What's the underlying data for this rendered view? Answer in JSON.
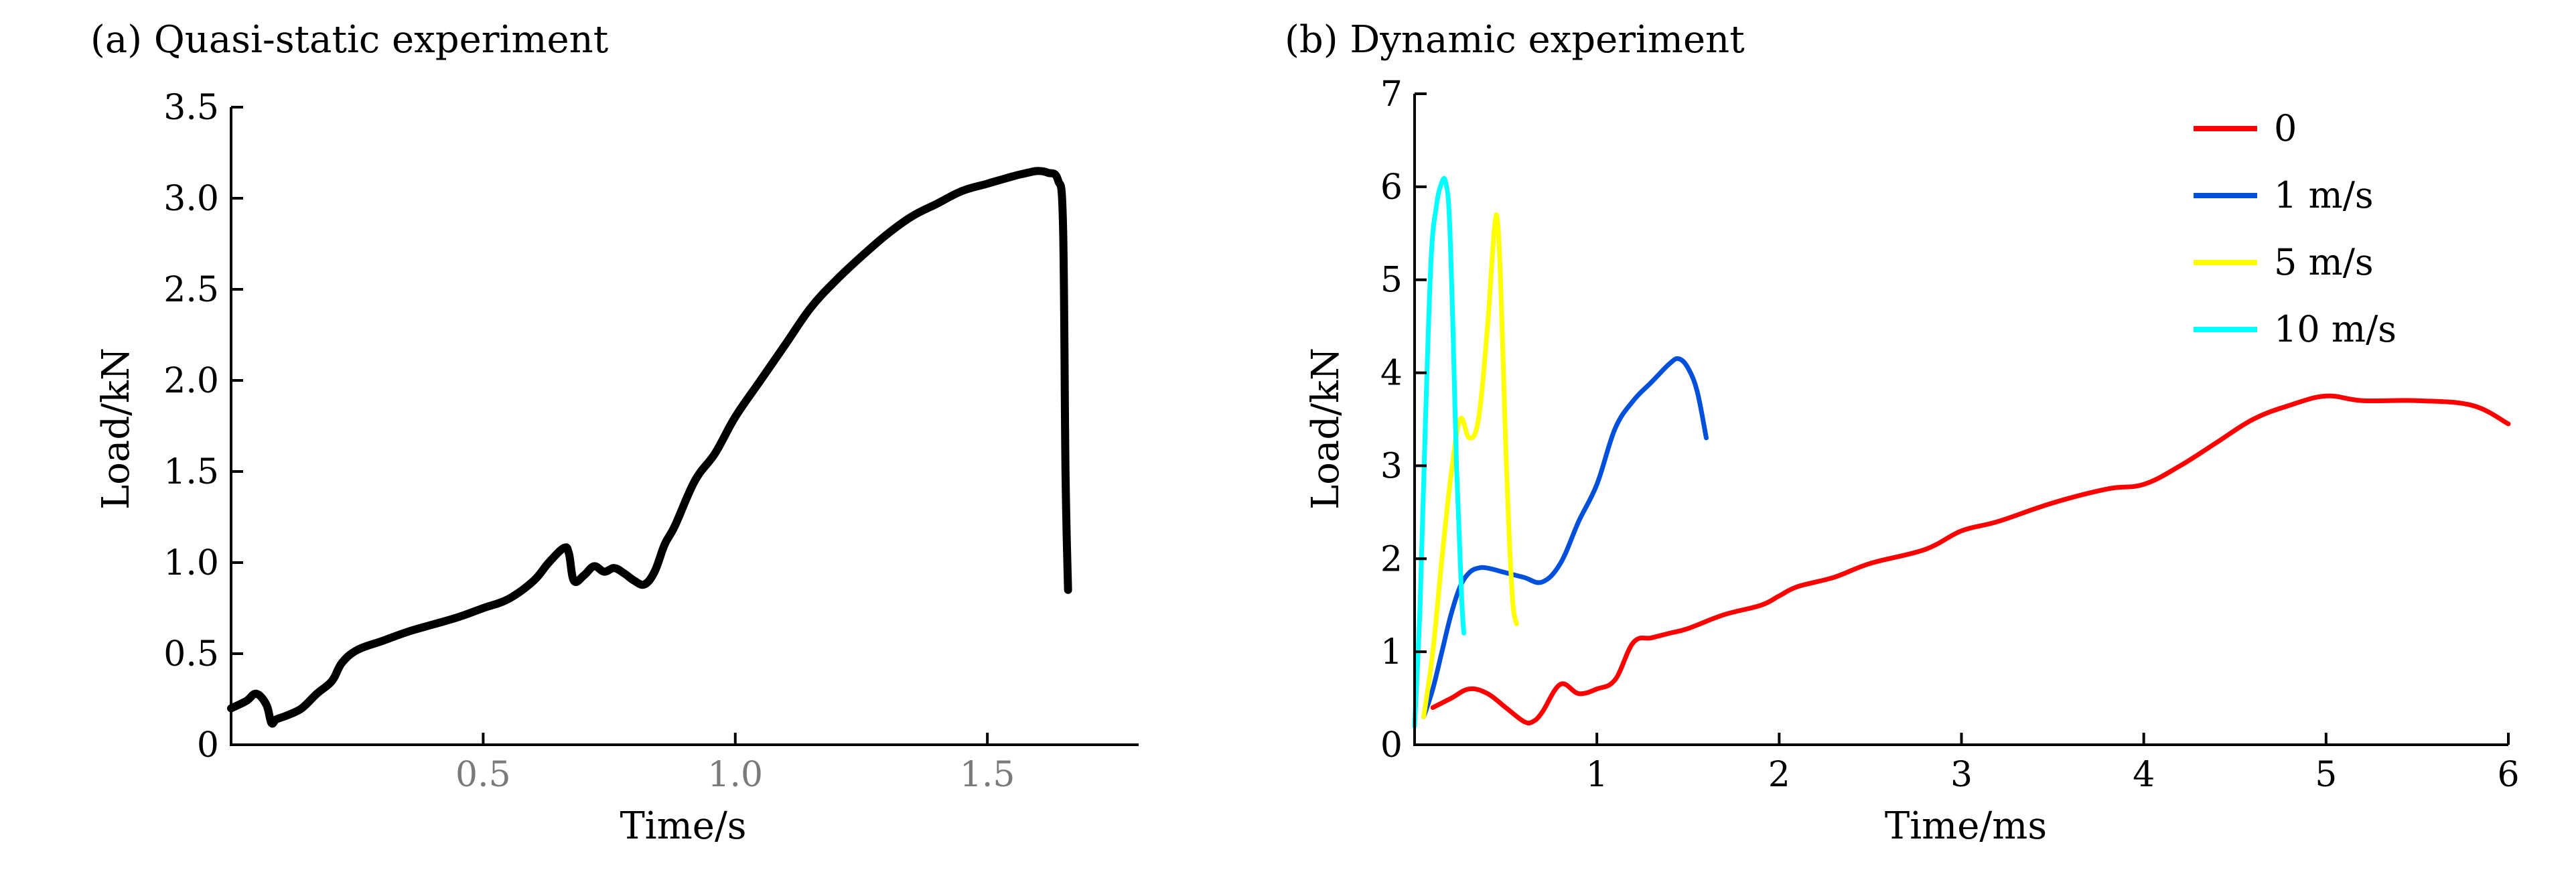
{
  "chart_data": [
    {
      "type": "line",
      "title": "(a) Quasi-static experiment",
      "xlabel": "Time/s",
      "ylabel": "Load/kN",
      "xlim": [
        0,
        1.8
      ],
      "ylim": [
        0,
        3.5
      ],
      "xticks": [
        "0.5",
        "1.0",
        "1.5"
      ],
      "xtick_values": [
        0.5,
        1.0,
        1.5
      ],
      "yticks": [
        "0",
        "0.5",
        "1.0",
        "1.5",
        "2.0",
        "2.5",
        "3.0",
        "3.5"
      ],
      "ytick_values": [
        0,
        0.5,
        1.0,
        1.5,
        2.0,
        2.5,
        3.0,
        3.5
      ],
      "grid": false,
      "series": [
        {
          "color": "#000000",
          "x": [
            0.0,
            0.03,
            0.05,
            0.07,
            0.08,
            0.09,
            0.11,
            0.14,
            0.17,
            0.2,
            0.22,
            0.25,
            0.3,
            0.35,
            0.4,
            0.45,
            0.5,
            0.55,
            0.6,
            0.63,
            0.66,
            0.67,
            0.68,
            0.7,
            0.72,
            0.74,
            0.76,
            0.78,
            0.8,
            0.82,
            0.84,
            0.86,
            0.88,
            0.92,
            0.96,
            1.0,
            1.05,
            1.1,
            1.15,
            1.2,
            1.25,
            1.3,
            1.35,
            1.4,
            1.45,
            1.5,
            1.55,
            1.58,
            1.6,
            1.62,
            1.64,
            1.65,
            1.655,
            1.66
          ],
          "y": [
            0.2,
            0.24,
            0.28,
            0.22,
            0.12,
            0.14,
            0.16,
            0.2,
            0.28,
            0.35,
            0.45,
            0.52,
            0.57,
            0.62,
            0.66,
            0.7,
            0.75,
            0.8,
            0.9,
            1.0,
            1.08,
            1.05,
            0.9,
            0.93,
            0.98,
            0.95,
            0.97,
            0.94,
            0.9,
            0.88,
            0.95,
            1.1,
            1.2,
            1.45,
            1.6,
            1.8,
            2.0,
            2.2,
            2.4,
            2.55,
            2.68,
            2.8,
            2.9,
            2.97,
            3.04,
            3.08,
            3.12,
            3.14,
            3.15,
            3.14,
            3.1,
            2.85,
            1.5,
            0.85
          ]
        }
      ]
    },
    {
      "type": "line",
      "title": "(b) Dynamic experiment",
      "xlabel": "Time/ms",
      "ylabel": "Load/kN",
      "xlim": [
        0,
        6
      ],
      "ylim": [
        0,
        7
      ],
      "xticks": [
        "1",
        "2",
        "3",
        "4",
        "5",
        "6"
      ],
      "xtick_values": [
        1,
        2,
        3,
        4,
        5,
        6
      ],
      "yticks": [
        "0",
        "1",
        "2",
        "3",
        "4",
        "5",
        "6",
        "7"
      ],
      "ytick_values": [
        0,
        1,
        2,
        3,
        4,
        5,
        6,
        7
      ],
      "grid": false,
      "legend_position": "top-right",
      "series": [
        {
          "name": "0",
          "color": "#ff0000",
          "x": [
            0.1,
            0.2,
            0.3,
            0.4,
            0.5,
            0.6,
            0.65,
            0.7,
            0.8,
            0.9,
            1.0,
            1.1,
            1.2,
            1.3,
            1.4,
            1.5,
            1.7,
            1.9,
            2.0,
            2.1,
            2.3,
            2.5,
            2.8,
            3.0,
            3.2,
            3.5,
            3.8,
            4.0,
            4.2,
            4.4,
            4.6,
            4.8,
            5.0,
            5.2,
            5.5,
            5.8,
            6.0
          ],
          "y": [
            0.4,
            0.5,
            0.6,
            0.55,
            0.4,
            0.25,
            0.25,
            0.35,
            0.65,
            0.55,
            0.6,
            0.7,
            1.1,
            1.15,
            1.2,
            1.25,
            1.4,
            1.5,
            1.6,
            1.7,
            1.8,
            1.95,
            2.1,
            2.3,
            2.4,
            2.6,
            2.75,
            2.8,
            3.0,
            3.25,
            3.5,
            3.65,
            3.75,
            3.7,
            3.7,
            3.65,
            3.45
          ]
        },
        {
          "name": "1 m/s",
          "color": "#0050dc",
          "x": [
            0.05,
            0.1,
            0.15,
            0.2,
            0.25,
            0.3,
            0.35,
            0.4,
            0.5,
            0.6,
            0.7,
            0.8,
            0.9,
            1.0,
            1.1,
            1.2,
            1.3,
            1.4,
            1.45,
            1.5,
            1.55,
            1.6
          ],
          "y": [
            0.3,
            0.6,
            1.0,
            1.4,
            1.7,
            1.85,
            1.9,
            1.9,
            1.85,
            1.8,
            1.75,
            1.95,
            2.4,
            2.8,
            3.4,
            3.7,
            3.9,
            4.1,
            4.15,
            4.05,
            3.8,
            3.3
          ]
        },
        {
          "name": "5 m/s",
          "color": "#ffff00",
          "x": [
            0.05,
            0.1,
            0.15,
            0.2,
            0.25,
            0.3,
            0.35,
            0.4,
            0.44,
            0.46,
            0.48,
            0.5,
            0.52,
            0.54,
            0.56
          ],
          "y": [
            0.3,
            1.0,
            2.0,
            2.9,
            3.5,
            3.3,
            3.5,
            4.5,
            5.6,
            5.5,
            4.5,
            3.2,
            2.2,
            1.5,
            1.3
          ]
        },
        {
          "name": "10 m/s",
          "color": "#00ffff",
          "x": [
            0.0,
            0.03,
            0.06,
            0.09,
            0.12,
            0.15,
            0.17,
            0.19,
            0.21,
            0.23,
            0.25,
            0.26,
            0.27
          ],
          "y": [
            0.2,
            1.5,
            3.5,
            5.2,
            5.8,
            6.05,
            6.05,
            5.7,
            4.5,
            3.0,
            2.0,
            1.5,
            1.2
          ]
        }
      ]
    }
  ]
}
